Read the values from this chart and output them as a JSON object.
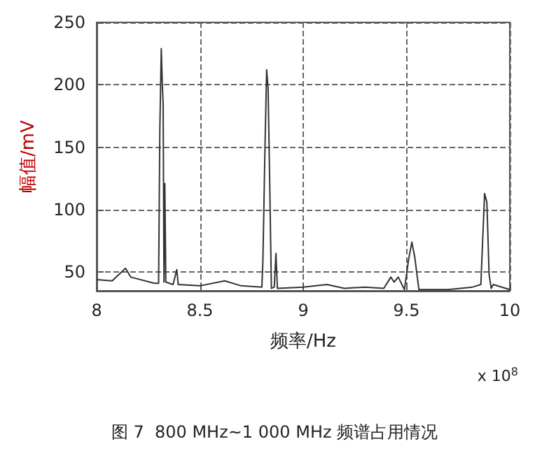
{
  "chart_data": {
    "type": "line",
    "title": "图 7  800 MHz~1 000 MHz 频谱占用情况",
    "xlabel": "频率/Hz",
    "ylabel": "幅值/mV",
    "annotations": [
      "x 10$^{8}$"
    ],
    "x": [
      8.0,
      8.075,
      8.14,
      8.165,
      8.28,
      8.3,
      8.306,
      8.313,
      8.318,
      8.322,
      8.326,
      8.33,
      8.335,
      8.37,
      8.388,
      8.395,
      8.5,
      8.62,
      8.7,
      8.8,
      8.805,
      8.815,
      8.823,
      8.83,
      8.838,
      8.846,
      8.86,
      8.868,
      8.875,
      9.0,
      9.115,
      9.2,
      9.3,
      9.39,
      9.424,
      9.44,
      9.46,
      9.49,
      9.51,
      9.526,
      9.54,
      9.56,
      9.7,
      9.82,
      9.86,
      9.878,
      9.889,
      9.9,
      9.91,
      9.92,
      10.0
    ],
    "series": [
      {
        "color": "#333333",
        "values": [
          44,
          43,
          53,
          46,
          41,
          41,
          165,
          229,
          200,
          185,
          42,
          121,
          42,
          40,
          52,
          40,
          39,
          43,
          39,
          38,
          60,
          150,
          212,
          197,
          120,
          37,
          38,
          65,
          37,
          38,
          40,
          37,
          38,
          37,
          46,
          42,
          46,
          36,
          60,
          74,
          62,
          36,
          36,
          38,
          40,
          113,
          106,
          48,
          37,
          40,
          36
        ]
      }
    ],
    "xlim": [
      8,
      10
    ],
    "xticks": [
      8,
      8.5,
      9,
      9.5,
      10
    ],
    "ylim": [
      35,
      250
    ],
    "yticks": [
      50,
      100,
      150,
      200,
      250
    ],
    "grid": true,
    "marker": "none",
    "line_style": "solid"
  }
}
